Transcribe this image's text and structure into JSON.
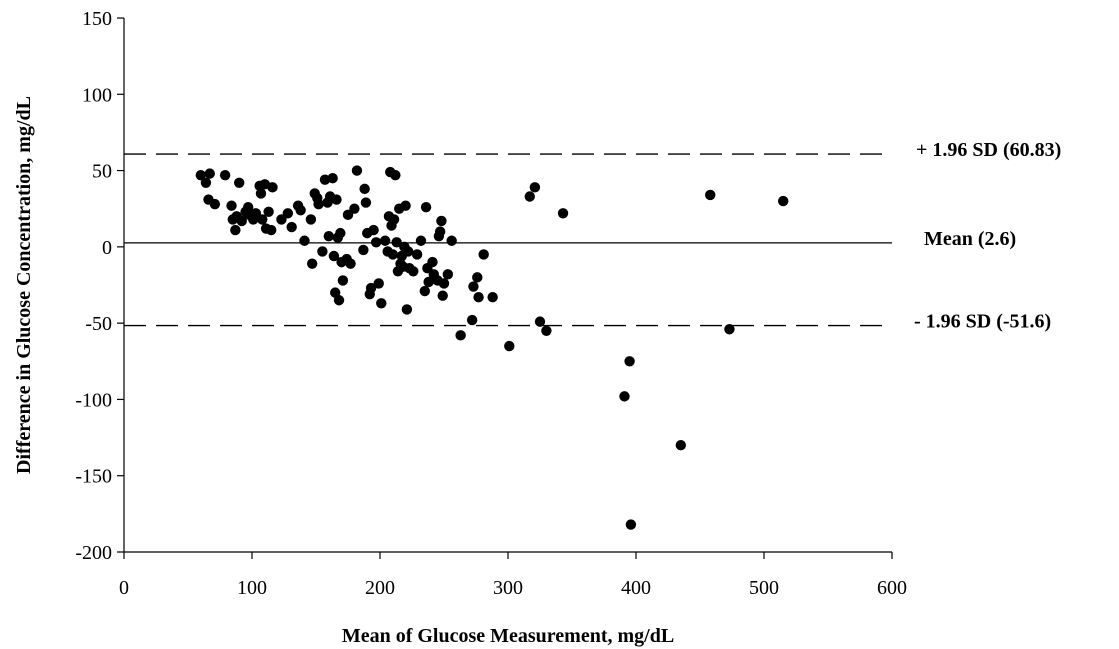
{
  "chart_data": {
    "type": "scatter",
    "title": "",
    "xlabel": "Mean of Glucose Measurement, mg/dL",
    "ylabel": "Difference in Glucose Concentration, mg/dL",
    "xlim": [
      0,
      600
    ],
    "ylim": [
      -200,
      150
    ],
    "xticks": [
      "0",
      "100",
      "200",
      "300",
      "400",
      "500",
      "600"
    ],
    "yticks": [
      "150",
      "100",
      "50",
      "0",
      "-50",
      "-100",
      "-150",
      "-200"
    ],
    "grid": false,
    "marker_color": "#000000",
    "reference_lines": [
      {
        "y": 60.83,
        "style": "dashed",
        "label": "+ 1.96 SD (60.83)"
      },
      {
        "y": 2.6,
        "style": "solid",
        "label": "Mean (2.6)"
      },
      {
        "y": -51.6,
        "style": "dashed",
        "label": "- 1.96 SD (-51.6)"
      }
    ],
    "points": [
      [
        60,
        47
      ],
      [
        64,
        42
      ],
      [
        66,
        31
      ],
      [
        67,
        48
      ],
      [
        71,
        28
      ],
      [
        79,
        47
      ],
      [
        84,
        27
      ],
      [
        85,
        18
      ],
      [
        87,
        11
      ],
      [
        88,
        20
      ],
      [
        90,
        42
      ],
      [
        92,
        17
      ],
      [
        95,
        23
      ],
      [
        97,
        26
      ],
      [
        98,
        21
      ],
      [
        101,
        18
      ],
      [
        103,
        22
      ],
      [
        106,
        40
      ],
      [
        107,
        35
      ],
      [
        108,
        18
      ],
      [
        110,
        41
      ],
      [
        111,
        12
      ],
      [
        113,
        23
      ],
      [
        115,
        11
      ],
      [
        116,
        39
      ],
      [
        123,
        18
      ],
      [
        128,
        22
      ],
      [
        131,
        13
      ],
      [
        136,
        27
      ],
      [
        138,
        24
      ],
      [
        141,
        4
      ],
      [
        146,
        18
      ],
      [
        147,
        -11
      ],
      [
        149,
        35
      ],
      [
        151,
        32
      ],
      [
        152,
        28
      ],
      [
        155,
        -3
      ],
      [
        157,
        44
      ],
      [
        159,
        29
      ],
      [
        160,
        7
      ],
      [
        161,
        33
      ],
      [
        163,
        45
      ],
      [
        164,
        -6
      ],
      [
        165,
        -30
      ],
      [
        166,
        31
      ],
      [
        167,
        6
      ],
      [
        168,
        -35
      ],
      [
        169,
        9
      ],
      [
        170,
        -10
      ],
      [
        171,
        -22
      ],
      [
        174,
        -8
      ],
      [
        175,
        21
      ],
      [
        177,
        -11
      ],
      [
        180,
        25
      ],
      [
        182,
        50
      ],
      [
        187,
        -2
      ],
      [
        188,
        38
      ],
      [
        189,
        29
      ],
      [
        190,
        9
      ],
      [
        192,
        -31
      ],
      [
        193,
        -27
      ],
      [
        195,
        11
      ],
      [
        197,
        3
      ],
      [
        199,
        -24
      ],
      [
        201,
        -37
      ],
      [
        204,
        4
      ],
      [
        206,
        -3
      ],
      [
        207,
        20
      ],
      [
        208,
        49
      ],
      [
        209,
        14
      ],
      [
        210,
        -5
      ],
      [
        211,
        18
      ],
      [
        212,
        47
      ],
      [
        213,
        3
      ],
      [
        214,
        -16
      ],
      [
        215,
        25
      ],
      [
        216,
        -11
      ],
      [
        217,
        -6
      ],
      [
        218,
        -13
      ],
      [
        219,
        0
      ],
      [
        220,
        27
      ],
      [
        221,
        -41
      ],
      [
        222,
        -3
      ],
      [
        223,
        -14
      ],
      [
        226,
        -16
      ],
      [
        229,
        -5
      ],
      [
        232,
        4
      ],
      [
        235,
        -29
      ],
      [
        236,
        26
      ],
      [
        237,
        -14
      ],
      [
        238,
        -23
      ],
      [
        241,
        -10
      ],
      [
        242,
        -18
      ],
      [
        245,
        -22
      ],
      [
        246,
        7
      ],
      [
        247,
        10
      ],
      [
        248,
        17
      ],
      [
        249,
        -32
      ],
      [
        250,
        -24
      ],
      [
        253,
        -18
      ],
      [
        256,
        4
      ],
      [
        263,
        -58
      ],
      [
        272,
        -48
      ],
      [
        273,
        -26
      ],
      [
        276,
        -20
      ],
      [
        277,
        -33
      ],
      [
        281,
        -5
      ],
      [
        288,
        -33
      ],
      [
        301,
        -65
      ],
      [
        317,
        33
      ],
      [
        321,
        39
      ],
      [
        325,
        -49
      ],
      [
        330,
        -55
      ],
      [
        343,
        22
      ],
      [
        391,
        -98
      ],
      [
        395,
        -75
      ],
      [
        396,
        -182
      ],
      [
        435,
        -130
      ],
      [
        458,
        34
      ],
      [
        473,
        -54
      ],
      [
        515,
        30
      ]
    ]
  }
}
